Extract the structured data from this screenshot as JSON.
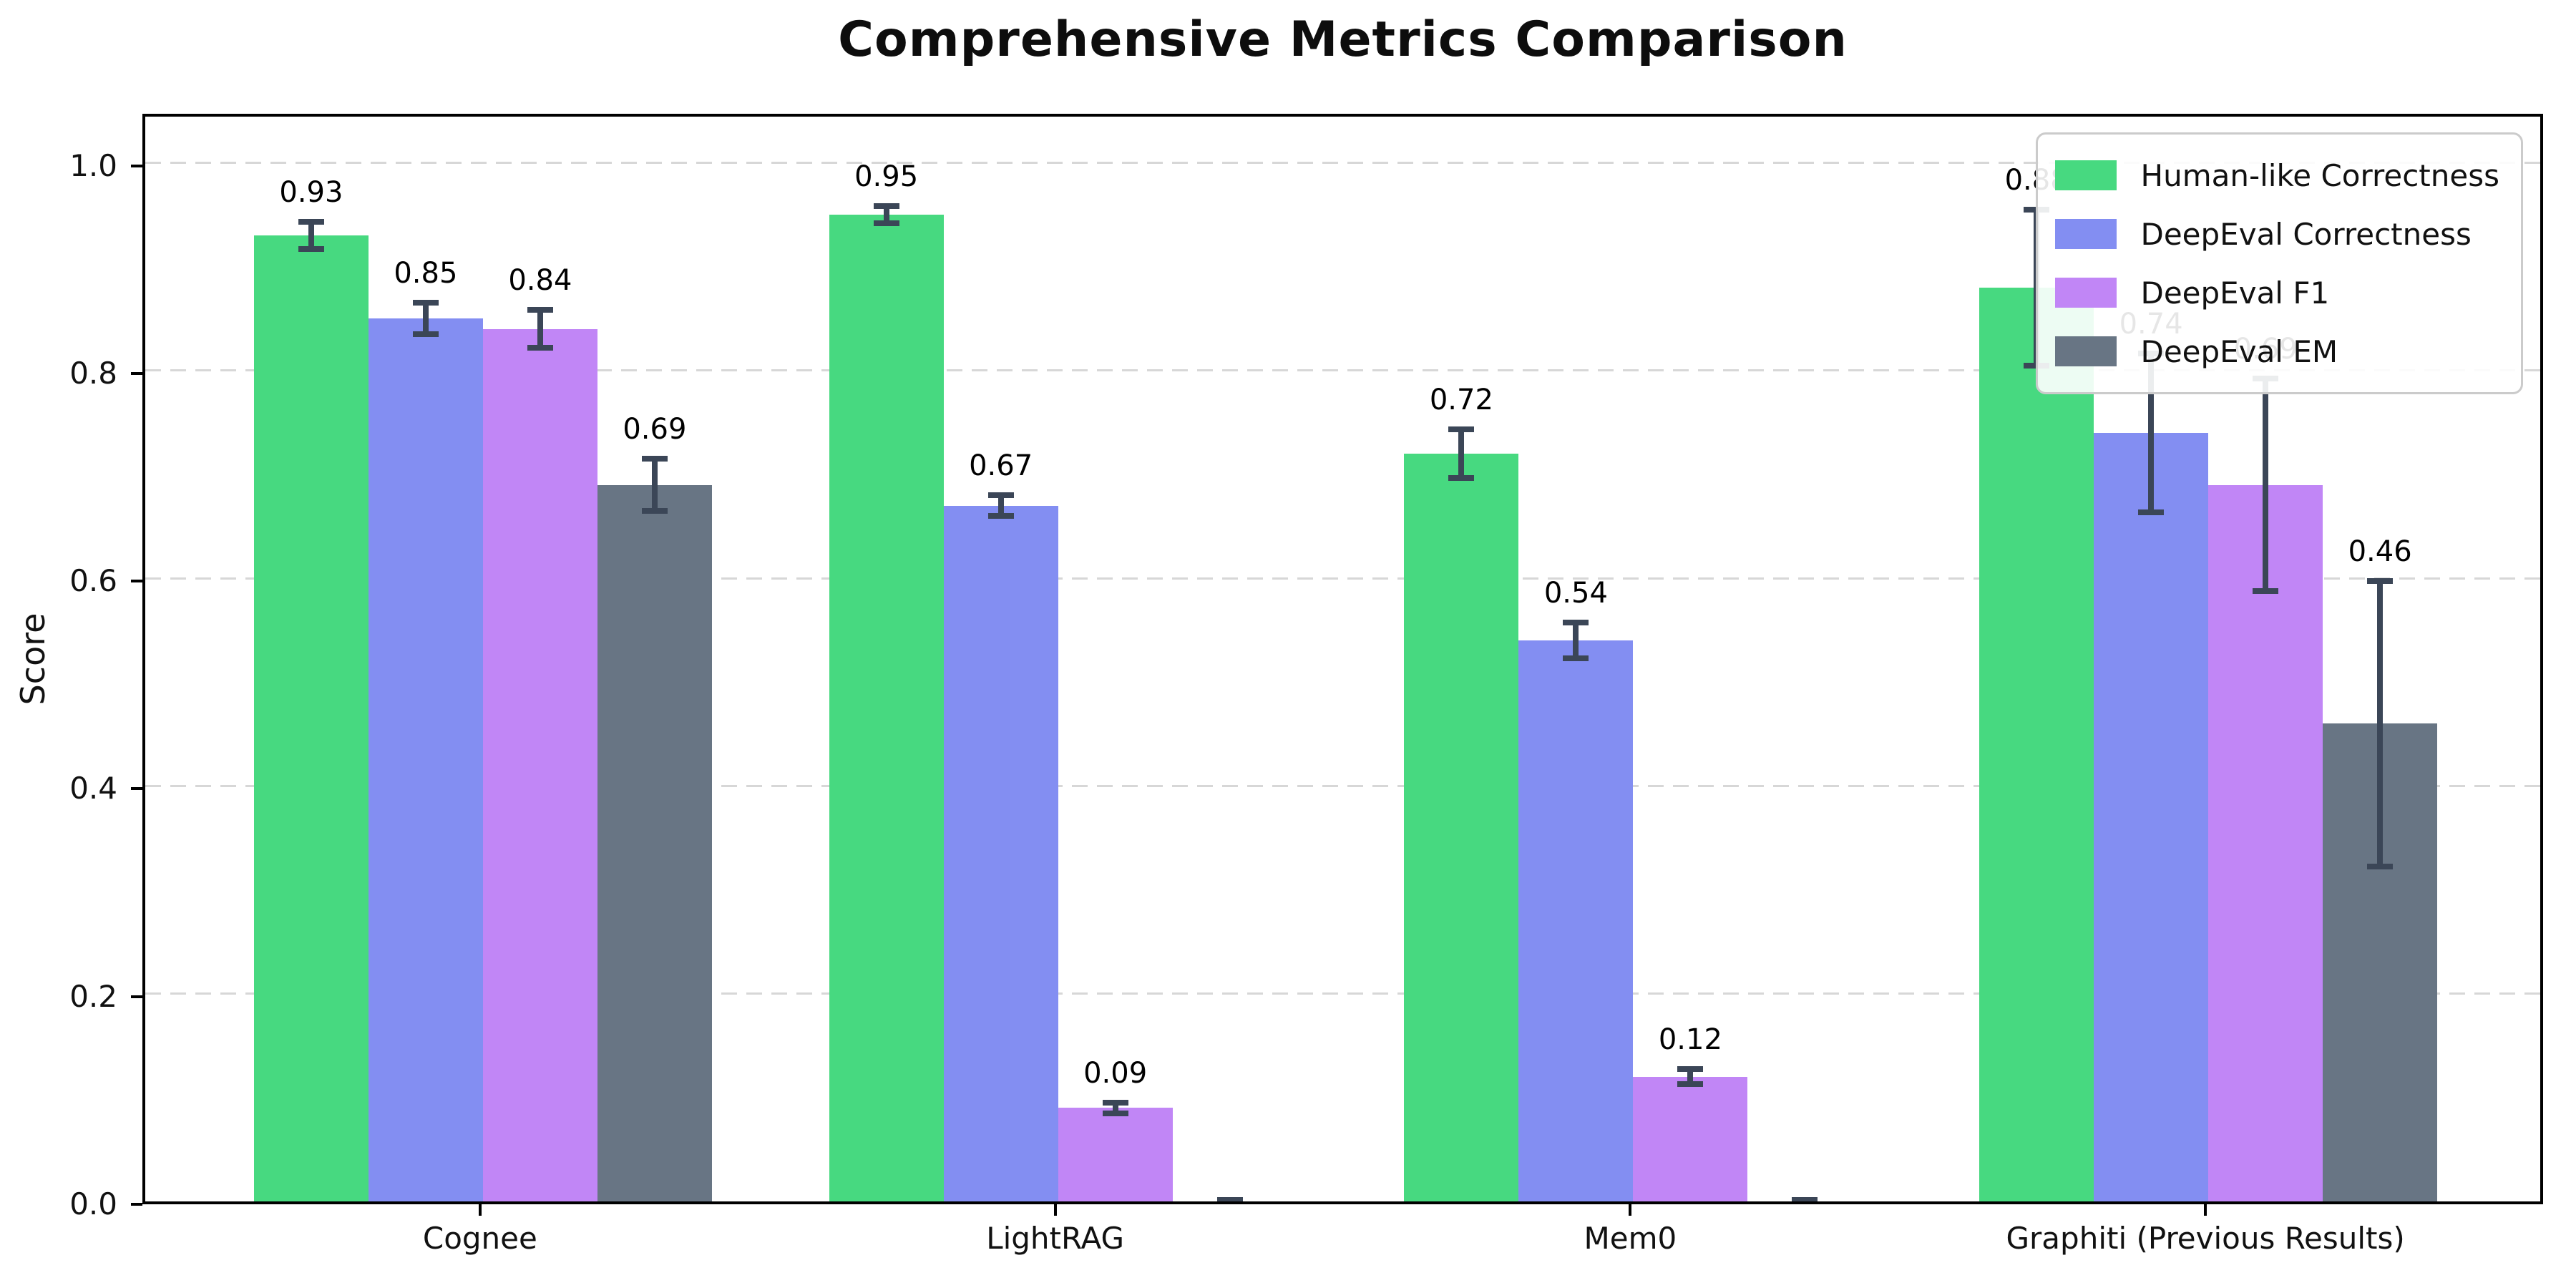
{
  "title": "Comprehensive Metrics Comparison",
  "chart_data": {
    "type": "bar",
    "title": "Comprehensive Metrics Comparison",
    "xlabel": "",
    "ylabel": "Score",
    "ylim": [
      0,
      1.05
    ],
    "ytick_labels": [
      "0.0",
      "0.2",
      "0.4",
      "0.6",
      "0.8",
      "1.0"
    ],
    "ytick_values": [
      0.0,
      0.2,
      0.4,
      0.6,
      0.8,
      1.0
    ],
    "grid": "horizontal-dashed",
    "grid_color": "#d7d7d7",
    "legend_position": "upper-right",
    "error_bar_color": "#3b4657",
    "categories": [
      "Cognee",
      "LightRAG",
      "Mem0",
      "Graphiti (Previous Results)"
    ],
    "series": [
      {
        "name": "Human-like Correctness",
        "color": "#47d980",
        "values": [
          0.93,
          0.95,
          0.72,
          0.88
        ],
        "errors": [
          0.016,
          0.011,
          0.026,
          0.078
        ],
        "labels": [
          "0.93",
          "0.95",
          "0.72",
          "0.88"
        ]
      },
      {
        "name": "DeepEval Correctness",
        "color": "#838ef2",
        "values": [
          0.85,
          0.67,
          0.54,
          0.74
        ],
        "errors": [
          0.018,
          0.013,
          0.02,
          0.079
        ],
        "labels": [
          "0.85",
          "0.67",
          "0.54",
          "0.74"
        ]
      },
      {
        "name": "DeepEval F1",
        "color": "#c186f6",
        "values": [
          0.84,
          0.09,
          0.12,
          0.69
        ],
        "errors": [
          0.021,
          0.008,
          0.01,
          0.105
        ],
        "labels": [
          "0.84",
          "0.09",
          "0.12",
          "0.69"
        ]
      },
      {
        "name": "DeepEval EM",
        "color": "#687584",
        "values": [
          0.69,
          0.0,
          0.0,
          0.46
        ],
        "errors": [
          0.028,
          0.004,
          0.004,
          0.14
        ],
        "labels": [
          "0.69",
          null,
          null,
          "0.46"
        ]
      }
    ]
  }
}
